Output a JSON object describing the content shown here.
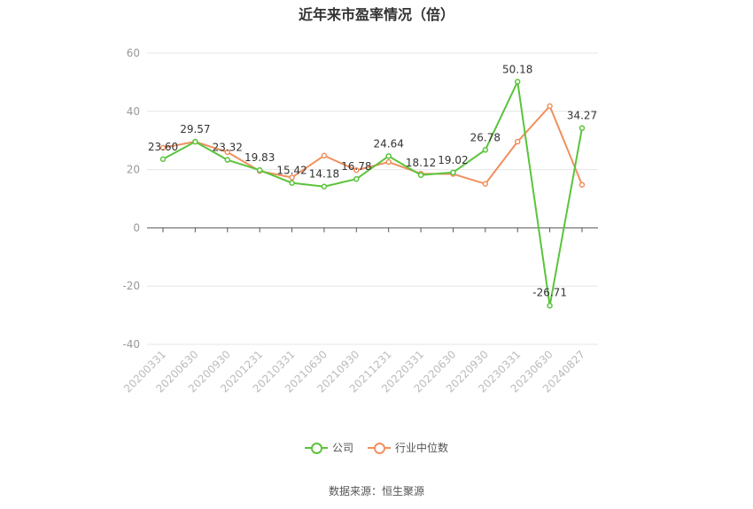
{
  "chart_data": {
    "type": "line",
    "title": "近年来市盈率情况（倍）",
    "categories": [
      "20200331",
      "20200630",
      "20200930",
      "20201231",
      "20210331",
      "20210630",
      "20210930",
      "20211231",
      "20220331",
      "20220630",
      "20220930",
      "20230331",
      "20230630",
      "20240827"
    ],
    "series": [
      {
        "name": "公司",
        "color": "#5ac43b",
        "values": [
          23.6,
          29.57,
          23.32,
          19.83,
          15.42,
          14.18,
          16.78,
          24.64,
          18.12,
          19.02,
          26.78,
          50.18,
          -26.71,
          34.27
        ],
        "labels": [
          "23.60",
          "29.57",
          "23.32",
          "19.83",
          "15.42",
          "14.18",
          "16.78",
          "24.64",
          "18.12",
          "19.02",
          "26.78",
          "50.18",
          "-26.71",
          "34.27"
        ]
      },
      {
        "name": "行业中位数",
        "color": "#f0905e",
        "values": [
          27.5,
          29.6,
          26.0,
          19.5,
          17.3,
          24.8,
          19.8,
          22.6,
          18.6,
          18.5,
          15.1,
          29.6,
          41.8,
          14.8
        ]
      }
    ],
    "ylim": [
      -40,
      60
    ],
    "yticks": [
      -40,
      -20,
      0,
      20,
      40,
      60
    ],
    "grid": true,
    "legend": "bottom"
  },
  "footer": {
    "source": "数据来源：恒生聚源"
  }
}
